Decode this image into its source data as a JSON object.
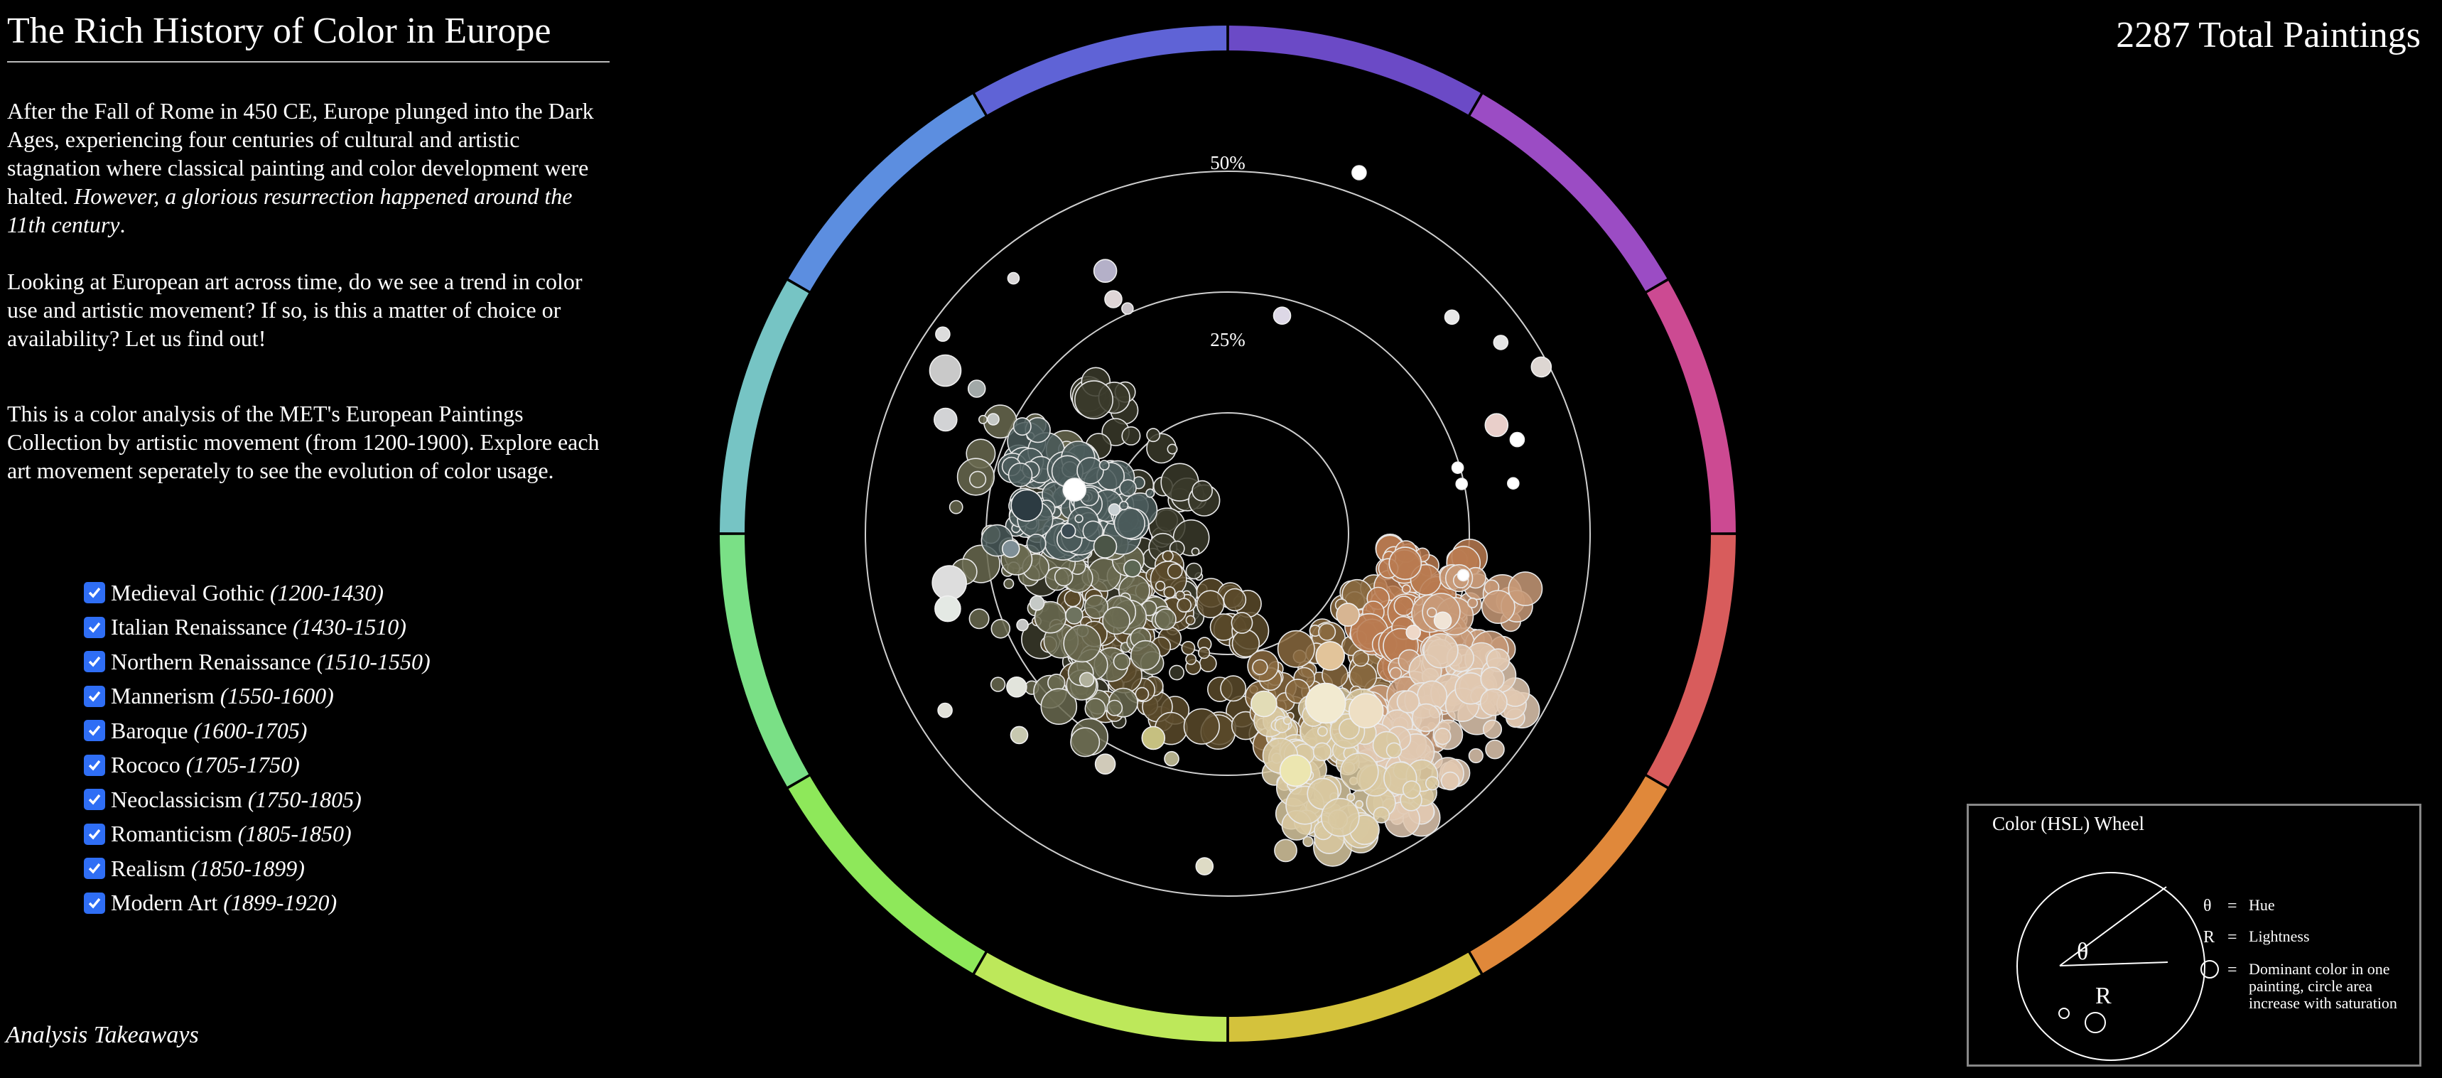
{
  "header": {
    "title": "The Rich History of Color in Europe",
    "total_label": "2287 Total Paintings"
  },
  "intro": {
    "p1_plain": "After the Fall of Rome in 450 CE, Europe plunged into the Dark Ages, experiencing four centuries of cultural and artistic stagnation where classical painting and color development were halted. ",
    "p1_italic": "However, a glorious resurrection happened around the 11th century",
    "p1_end": ".",
    "p2": "Looking at European art across time, do we see a trend in color use and artistic movement? If so, is this a matter of choice or availability? Let us find out!",
    "p3": "This is a color analysis of the MET's European Paintings Collection by artistic movement (from 1200-1900). Explore each art movement seperately to see the evolution of color usage."
  },
  "movements": [
    {
      "name": "Medieval Gothic",
      "years": "(1200-1430)",
      "checked": true
    },
    {
      "name": "Italian Renaissance",
      "years": "(1430-1510)",
      "checked": true
    },
    {
      "name": "Northern Renaissance",
      "years": "(1510-1550)",
      "checked": true
    },
    {
      "name": "Mannerism",
      "years": "(1550-1600)",
      "checked": true
    },
    {
      "name": "Baroque",
      "years": "(1600-1705)",
      "checked": true
    },
    {
      "name": "Rococo",
      "years": "(1705-1750)",
      "checked": true
    },
    {
      "name": "Neoclassicism",
      "years": "(1750-1805)",
      "checked": true
    },
    {
      "name": "Romanticism",
      "years": "(1805-1850)",
      "checked": true
    },
    {
      "name": "Realism",
      "years": "(1850-1899)",
      "checked": true
    },
    {
      "name": "Modern Art",
      "years": "(1899-1920)",
      "checked": true
    }
  ],
  "footer": {
    "takeaways_label": "Analysis Takeaways"
  },
  "hsl_key": {
    "title": "Color (HSL) Wheel",
    "theta_symbol": "θ",
    "r_symbol": "R",
    "eq": "=",
    "hue_label": "Hue",
    "lightness_label": "Lightness",
    "circle_label": "Dominant color in one painting, circle area increase with saturation"
  },
  "chart_data": {
    "type": "scatter",
    "encoding": "polar: angle = hue (degrees clockwise from top), radius = lightness, circle area = saturation",
    "ring_labels": [
      "50%",
      "25%"
    ],
    "hue_ring": {
      "segments": 12,
      "colors": [
        "#6b4ac6",
        "#9b4cc4",
        "#cc4a92",
        "#d85c5c",
        "#e0883a",
        "#d4c23c",
        "#bde85a",
        "#8ee85a",
        "#7ae086",
        "#76c4c4",
        "#5c8ee0",
        "#5f63d6"
      ]
    },
    "series": [
      {
        "name": "",
        "points": [
          {
            "hue": 334,
            "l": 0.36,
            "s": 0.4,
            "color": "#ded5d6"
          },
          {
            "hue": 336,
            "l": 0.34,
            "s": 0.2,
            "color": "#c9c3c8"
          },
          {
            "hue": 335,
            "l": 0.4,
            "s": 0.6,
            "color": "#b4b0c8"
          },
          {
            "hue": 320,
            "l": 0.46,
            "s": 0.2,
            "color": "#dad7d8"
          },
          {
            "hue": 305,
            "l": 0.48,
            "s": 0.3,
            "color": "#dcdcdc"
          },
          {
            "hue": 300,
            "l": 0.45,
            "s": 0.9,
            "color": "#c9c9c9"
          },
          {
            "hue": 300,
            "l": 0.4,
            "s": 0.4,
            "color": "#a2a9a8"
          },
          {
            "hue": 296,
            "l": 0.36,
            "s": 0.2,
            "color": "#c4c7c4"
          },
          {
            "hue": 292,
            "l": 0.42,
            "s": 0.6,
            "color": "#d2d3d5"
          },
          {
            "hue": 286,
            "l": 0.22,
            "s": 0.6,
            "color": "#ffffff"
          },
          {
            "hue": 282,
            "l": 0.16,
            "s": 0.2,
            "color": "#c8cfd2"
          },
          {
            "hue": 278,
            "l": 0.28,
            "s": 0.9,
            "color": "#2c3b42"
          },
          {
            "hue": 271,
            "l": 0.22,
            "s": 0.3,
            "color": "#3b4b53"
          },
          {
            "hue": 266,
            "l": 0.3,
            "s": 0.4,
            "color": "#7f8f97"
          },
          {
            "hue": 260,
            "l": 0.39,
            "s": 1.0,
            "color": "#dddddd"
          },
          {
            "hue": 255,
            "l": 0.4,
            "s": 0.7,
            "color": "#e4e9e4"
          },
          {
            "hue": 250,
            "l": 0.28,
            "s": 0.3,
            "color": "#c5c9c6"
          },
          {
            "hue": 264,
            "l": 0.17,
            "s": 0.6,
            "color": "#4b5547"
          },
          {
            "hue": 250,
            "l": 0.14,
            "s": 0.4,
            "color": "#5c6754"
          },
          {
            "hue": 246,
            "l": 0.31,
            "s": 0.2,
            "color": "#c4c5c4"
          },
          {
            "hue": 242,
            "l": 0.24,
            "s": 0.4,
            "color": "#6e735f"
          },
          {
            "hue": 238,
            "l": 0.46,
            "s": 0.3,
            "color": "#e0e0d8"
          },
          {
            "hue": 234,
            "l": 0.36,
            "s": 0.5,
            "color": "#e2e4dc"
          },
          {
            "hue": 226,
            "l": 0.4,
            "s": 0.4,
            "color": "#c7c8b0"
          },
          {
            "hue": 224,
            "l": 0.28,
            "s": 0.3,
            "color": "#b0b09c"
          },
          {
            "hue": 208,
            "l": 0.36,
            "s": 0.5,
            "color": "#d0cab9"
          },
          {
            "hue": 200,
            "l": 0.3,
            "s": 0.6,
            "color": "#c6c080"
          },
          {
            "hue": 194,
            "l": 0.32,
            "s": 0.3,
            "color": "#b1ad8a"
          },
          {
            "hue": 184,
            "l": 0.46,
            "s": 0.4,
            "color": "#dedbc5"
          },
          {
            "hue": 168,
            "l": 0.24,
            "s": 0.7,
            "color": "#e2dcb6"
          },
          {
            "hue": 164,
            "l": 0.34,
            "s": 0.9,
            "color": "#ece6b0"
          },
          {
            "hue": 150,
            "l": 0.27,
            "s": 1.2,
            "color": "#f2ead0"
          },
          {
            "hue": 142,
            "l": 0.31,
            "s": 1.0,
            "color": "#eedfc4"
          },
          {
            "hue": 140,
            "l": 0.22,
            "s": 0.8,
            "color": "#e2c49a"
          },
          {
            "hue": 124,
            "l": 0.2,
            "s": 0.6,
            "color": "#d7b592"
          },
          {
            "hue": 118,
            "l": 0.29,
            "s": 0.3,
            "color": "#eed8c8"
          },
          {
            "hue": 112,
            "l": 0.32,
            "s": 0.4,
            "color": "#f0e4d6"
          },
          {
            "hue": 100,
            "l": 0.33,
            "s": 0.2,
            "color": "#ffffff"
          },
          {
            "hue": 80,
            "l": 0.4,
            "s": 0.2,
            "color": "#ffffff"
          },
          {
            "hue": 78,
            "l": 0.33,
            "s": 0.2,
            "color": "#ffffff"
          },
          {
            "hue": 74,
            "l": 0.33,
            "s": 0.2,
            "color": "#ffffff"
          },
          {
            "hue": 72,
            "l": 0.42,
            "s": 0.3,
            "color": "#ffffff"
          },
          {
            "hue": 68,
            "l": 0.4,
            "s": 0.6,
            "color": "#e9cfca"
          },
          {
            "hue": 62,
            "l": 0.49,
            "s": 0.5,
            "color": "#ddd6d2"
          },
          {
            "hue": 55,
            "l": 0.46,
            "s": 0.3,
            "color": "#e6e6e6"
          },
          {
            "hue": 46,
            "l": 0.43,
            "s": 0.3,
            "color": "#e8e8e8"
          },
          {
            "hue": 20,
            "l": 0.53,
            "s": 0.3,
            "color": "#ffffff"
          },
          {
            "hue": 14,
            "l": 0.31,
            "s": 0.4,
            "color": "#ddd8e6"
          }
        ]
      }
    ]
  }
}
